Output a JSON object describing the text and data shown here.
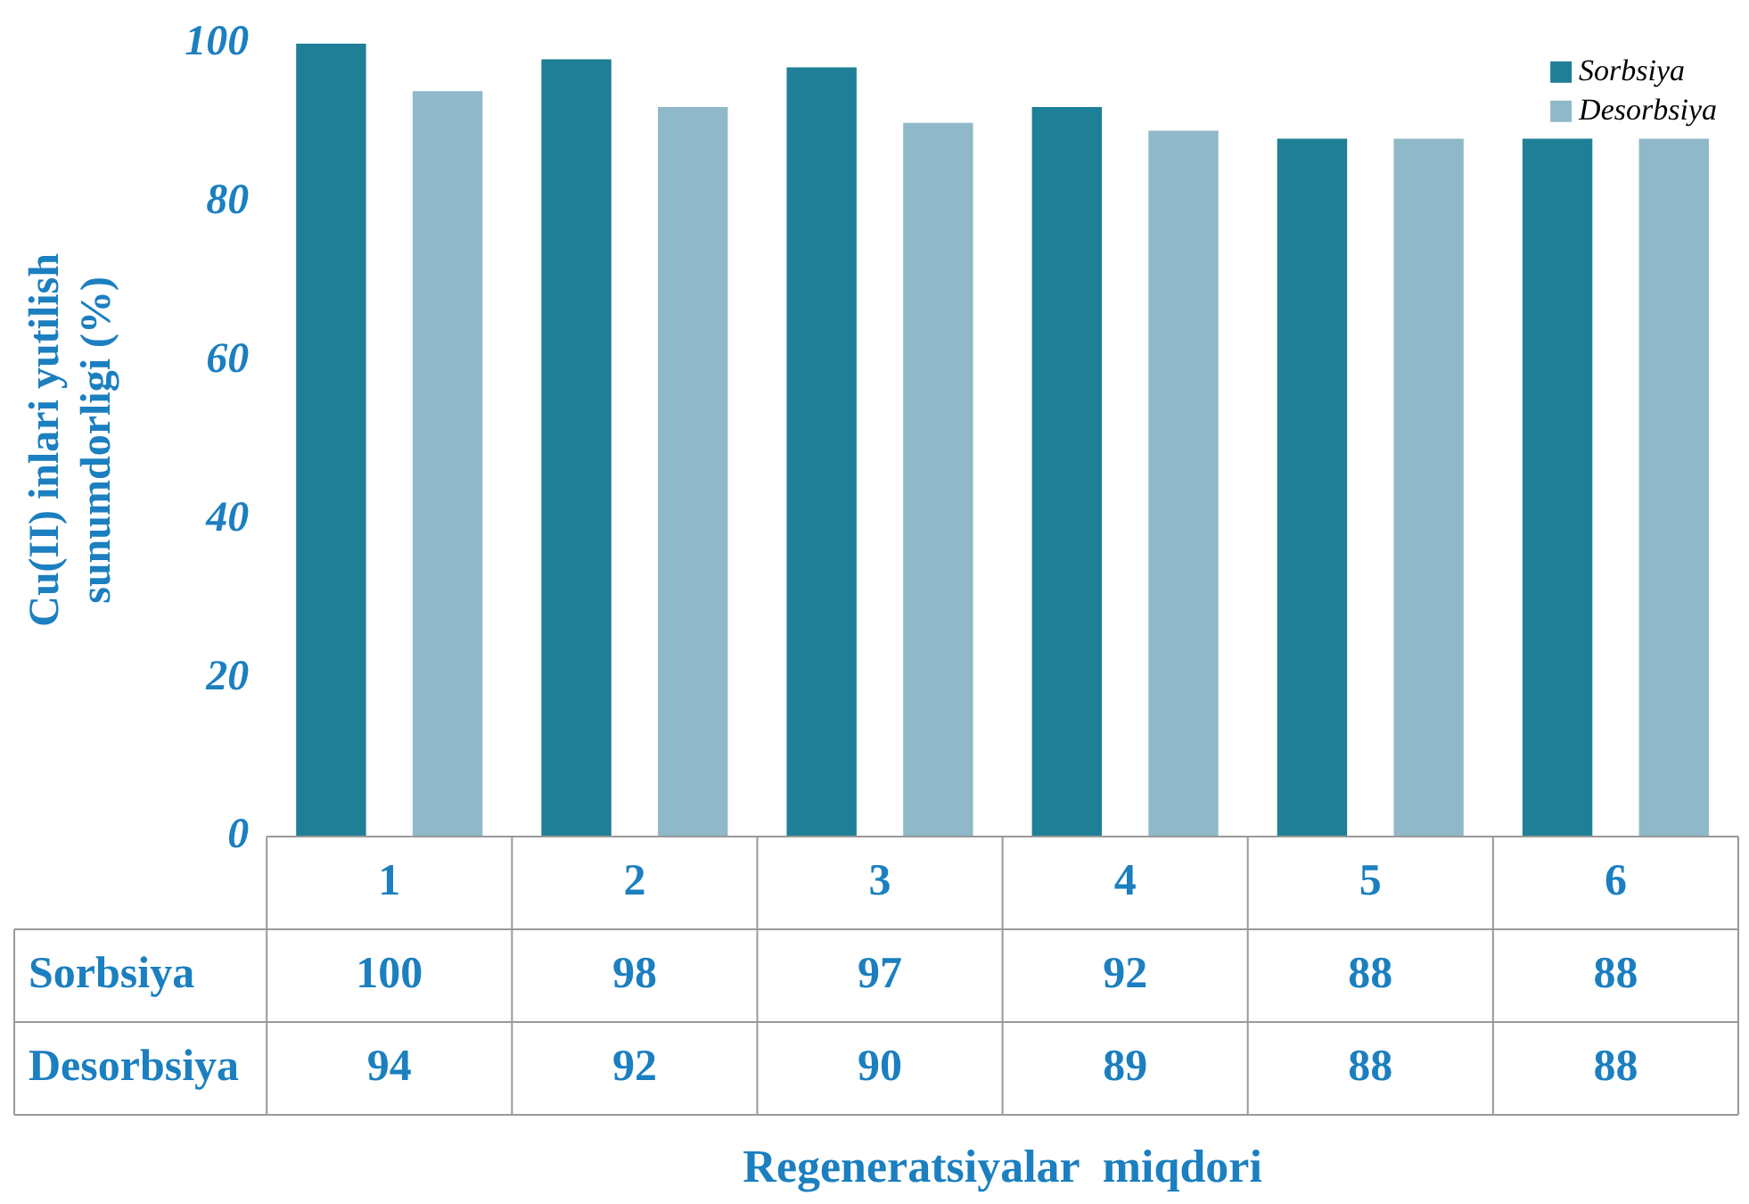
{
  "chart_data": {
    "type": "bar",
    "annotations": [
      "Regeneratsiyalar  miqdori"
    ],
    "ylabel": "Cu(II) inlari yutilish sunumdorligi (%)",
    "categories": [
      "1",
      "2",
      "3",
      "4",
      "5",
      "6"
    ],
    "series": [
      {
        "name": "Sorbsiya",
        "color": "#1f7f96",
        "values": [
          100,
          98,
          97,
          92,
          88,
          88
        ]
      },
      {
        "name": "Desorbsiya",
        "color": "#8fb9c8",
        "values": [
          94,
          92,
          90,
          89,
          88,
          88
        ]
      }
    ],
    "ylim": [
      0,
      100
    ],
    "yticks": [
      0,
      20,
      40,
      60,
      80,
      100
    ],
    "grid": false,
    "legend": "top right",
    "data_labels": true
  }
}
